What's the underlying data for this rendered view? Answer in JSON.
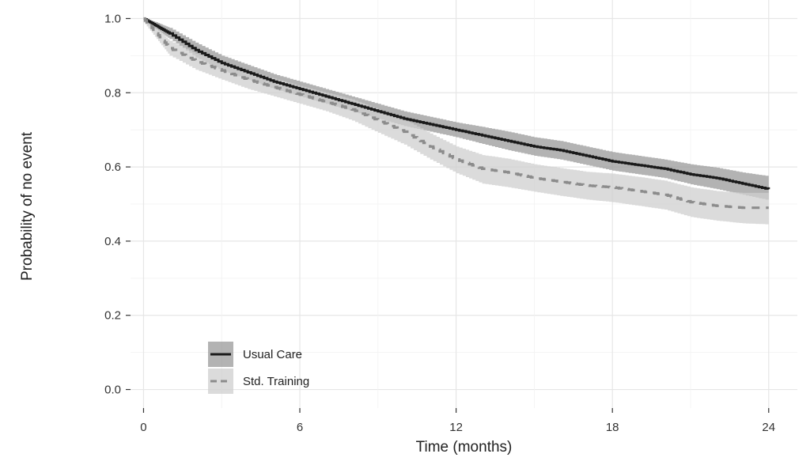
{
  "chart_data": {
    "type": "line",
    "title": "",
    "xlabel": "Time (months)",
    "ylabel": "Probability of no event",
    "xlim": [
      -0.5,
      25.1
    ],
    "ylim": [
      -0.05,
      1.05
    ],
    "x_ticks": [
      0,
      6,
      12,
      18,
      24
    ],
    "x_tick_labels": [
      "0",
      "6",
      "12",
      "18",
      "24"
    ],
    "y_ticks": [
      0.0,
      0.2,
      0.4,
      0.6,
      0.8,
      1.0
    ],
    "y_tick_labels": [
      "0.0",
      "0.2",
      "0.4",
      "0.6",
      "0.8",
      "1.0"
    ],
    "grid": true,
    "legend": "bottom-left",
    "series": [
      {
        "name": "Usual Care",
        "style": "solid",
        "line_color": "#1a1a1a",
        "band_color": "#9a9a9a",
        "band_opacity": 0.75,
        "x": [
          0,
          0.5,
          1,
          2,
          3,
          4,
          5,
          6,
          7,
          8,
          9,
          10,
          11,
          12,
          13,
          14,
          15,
          16,
          17,
          18,
          19,
          20,
          21,
          22,
          23,
          24
        ],
        "y": [
          1.0,
          0.98,
          0.96,
          0.915,
          0.88,
          0.855,
          0.83,
          0.81,
          0.79,
          0.77,
          0.75,
          0.73,
          0.715,
          0.7,
          0.685,
          0.67,
          0.655,
          0.645,
          0.63,
          0.615,
          0.605,
          0.595,
          0.58,
          0.57,
          0.555,
          0.54
        ],
        "lower": [
          0.99,
          0.97,
          0.945,
          0.895,
          0.86,
          0.835,
          0.81,
          0.79,
          0.77,
          0.75,
          0.73,
          0.71,
          0.695,
          0.68,
          0.662,
          0.645,
          0.63,
          0.62,
          0.605,
          0.59,
          0.58,
          0.57,
          0.553,
          0.54,
          0.525,
          0.51
        ],
        "upper": [
          1.0,
          0.99,
          0.975,
          0.935,
          0.9,
          0.875,
          0.85,
          0.83,
          0.81,
          0.79,
          0.77,
          0.75,
          0.735,
          0.72,
          0.708,
          0.695,
          0.68,
          0.67,
          0.655,
          0.64,
          0.63,
          0.62,
          0.607,
          0.598,
          0.585,
          0.575
        ]
      },
      {
        "name": "Std. Training",
        "style": "dashed",
        "line_color": "#8c8c8c",
        "band_color": "#cfcfcf",
        "band_opacity": 0.75,
        "x": [
          0,
          0.5,
          1,
          2,
          3,
          4,
          5,
          6,
          7,
          8,
          9,
          10,
          11,
          12,
          13,
          14,
          15,
          16,
          17,
          18,
          19,
          20,
          21,
          22,
          23,
          24
        ],
        "y": [
          1.0,
          0.96,
          0.92,
          0.885,
          0.86,
          0.835,
          0.815,
          0.795,
          0.775,
          0.755,
          0.725,
          0.695,
          0.655,
          0.62,
          0.595,
          0.585,
          0.57,
          0.56,
          0.55,
          0.545,
          0.535,
          0.525,
          0.505,
          0.495,
          0.49,
          0.49
        ],
        "lower": [
          0.99,
          0.945,
          0.9,
          0.862,
          0.835,
          0.81,
          0.79,
          0.77,
          0.75,
          0.725,
          0.692,
          0.66,
          0.62,
          0.583,
          0.555,
          0.545,
          0.533,
          0.522,
          0.512,
          0.505,
          0.495,
          0.485,
          0.465,
          0.455,
          0.448,
          0.445
        ],
        "upper": [
          1.0,
          0.975,
          0.94,
          0.905,
          0.882,
          0.858,
          0.838,
          0.818,
          0.8,
          0.782,
          0.755,
          0.728,
          0.69,
          0.655,
          0.632,
          0.622,
          0.607,
          0.597,
          0.587,
          0.582,
          0.573,
          0.563,
          0.545,
          0.535,
          0.53,
          0.53
        ]
      }
    ]
  }
}
